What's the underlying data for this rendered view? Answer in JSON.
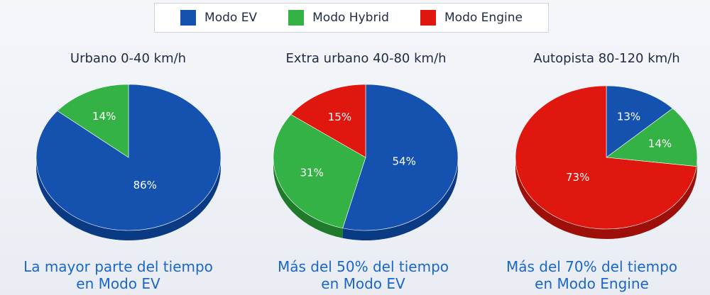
{
  "legend": [
    {
      "label": "Modo EV",
      "color": "#1552b0"
    },
    {
      "label": "Modo Hybrid",
      "color": "#35b245"
    },
    {
      "label": "Modo Engine",
      "color": "#e0170f"
    }
  ],
  "chart_data": [
    {
      "type": "pie",
      "title": "Urbano 0-40 km/h",
      "slices": [
        {
          "name": "Modo EV",
          "value": 86,
          "label": "86%"
        },
        {
          "name": "Modo Hybrid",
          "value": 14,
          "label": "14%"
        }
      ],
      "caption": [
        "La mayor parte del tiempo",
        "en Modo EV"
      ]
    },
    {
      "type": "pie",
      "title": "Extra urbano 40-80 km/h",
      "slices": [
        {
          "name": "Modo EV",
          "value": 54,
          "label": "54%"
        },
        {
          "name": "Modo Hybrid",
          "value": 31,
          "label": "31%"
        },
        {
          "name": "Modo Engine",
          "value": 15,
          "label": "15%"
        }
      ],
      "caption": [
        "Más del 50% del tiempo",
        "en Modo EV"
      ]
    },
    {
      "type": "pie",
      "title": "Autopista  80-120 km/h",
      "slices": [
        {
          "name": "Modo EV",
          "value": 13,
          "label": "13%"
        },
        {
          "name": "Modo Hybrid",
          "value": 14,
          "label": "14%"
        },
        {
          "name": "Modo Engine",
          "value": 73,
          "label": "73%"
        }
      ],
      "caption": [
        "Más del 70% del tiempo",
        "en Modo Engine"
      ]
    }
  ]
}
